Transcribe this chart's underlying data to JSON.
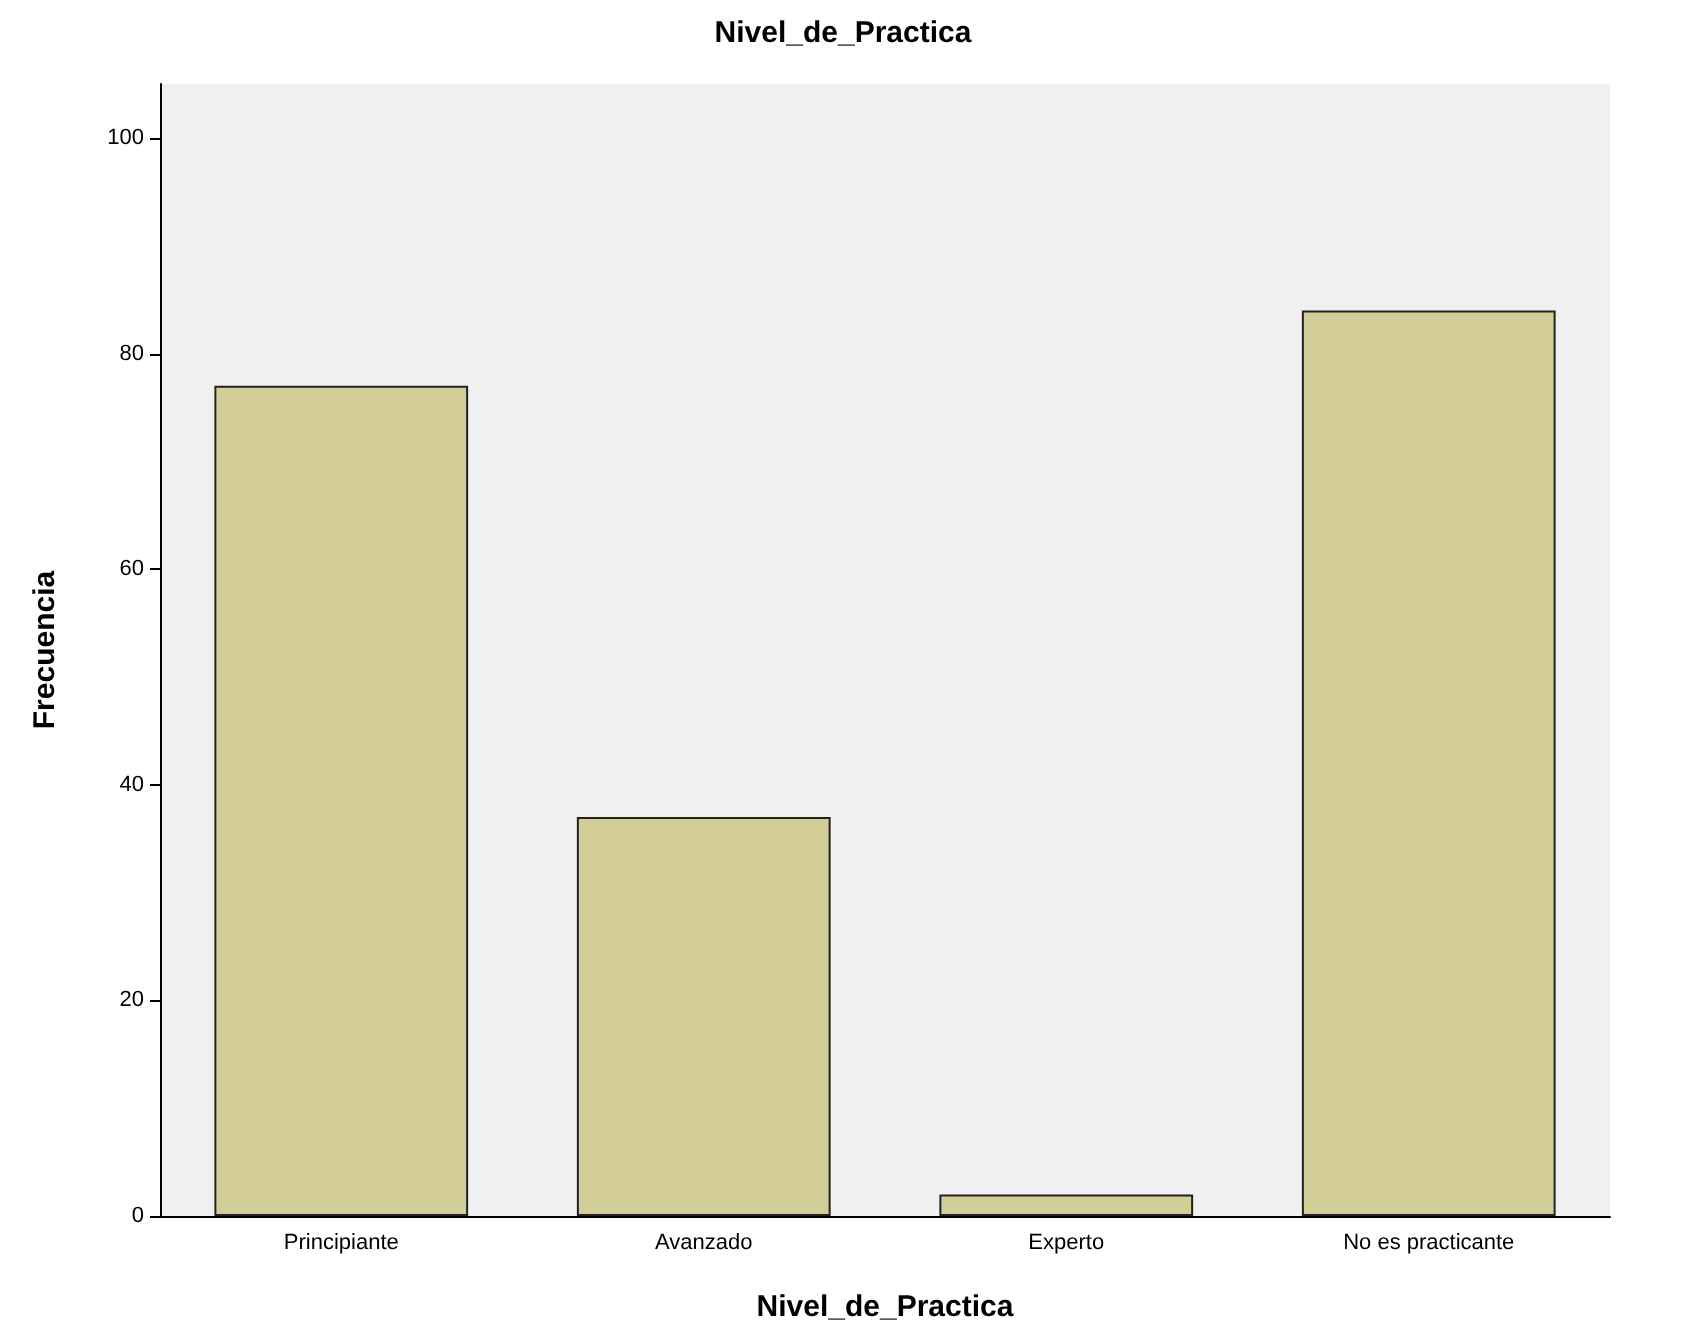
{
  "chart_data": {
    "type": "bar",
    "title": "Nivel_de_Practica",
    "xlabel": "Nivel_de_Practica",
    "ylabel": "Frecuencia",
    "categories": [
      "Principiante",
      "Avanzado",
      "Experto",
      "No es practicante"
    ],
    "values": [
      77,
      37,
      2,
      84
    ],
    "color": "#d3ce97",
    "ylim": [
      0,
      105
    ],
    "yticks": [
      0,
      20,
      40,
      60,
      80,
      100
    ],
    "grid": false
  }
}
